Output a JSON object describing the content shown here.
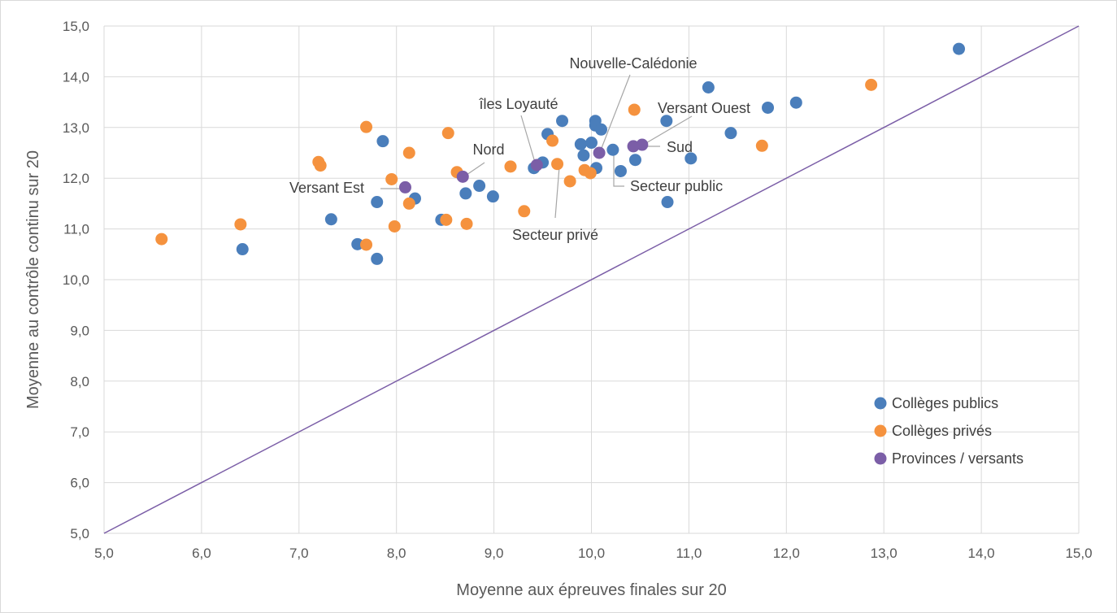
{
  "chart_data": {
    "type": "scatter",
    "xlabel": "Moyenne aux épreuves finales sur 20",
    "ylabel": "Moyenne au contrôle continu sur 20",
    "xlim": [
      5,
      15
    ],
    "ylim": [
      5,
      15
    ],
    "x_ticks": [
      "5,0",
      "6,0",
      "7,0",
      "8,0",
      "9,0",
      "10,0",
      "11,0",
      "12,0",
      "13,0",
      "14,0",
      "15,0"
    ],
    "y_ticks": [
      "5,0",
      "6,0",
      "7,0",
      "8,0",
      "9,0",
      "10,0",
      "11,0",
      "12,0",
      "13,0",
      "14,0",
      "15,0"
    ],
    "grid": true,
    "legend_position": "bottom-right",
    "reference_line": {
      "from": [
        5,
        5
      ],
      "to": [
        15,
        15
      ],
      "color": "#7b5ea7"
    },
    "series": [
      {
        "name": "Collèges publics",
        "color": "#4a7ebb",
        "points": [
          [
            6.42,
            10.6
          ],
          [
            7.33,
            11.19
          ],
          [
            7.6,
            10.7
          ],
          [
            7.8,
            10.41
          ],
          [
            7.8,
            11.53
          ],
          [
            7.86,
            12.73
          ],
          [
            8.19,
            11.6
          ],
          [
            8.46,
            11.18
          ],
          [
            8.71,
            11.7
          ],
          [
            8.85,
            11.85
          ],
          [
            8.99,
            11.64
          ],
          [
            9.41,
            12.2
          ],
          [
            9.5,
            12.31
          ],
          [
            9.55,
            12.87
          ],
          [
            9.7,
            13.13
          ],
          [
            9.89,
            12.67
          ],
          [
            9.92,
            12.45
          ],
          [
            10.0,
            12.7
          ],
          [
            10.04,
            13.13
          ],
          [
            10.04,
            13.04
          ],
          [
            10.05,
            12.2
          ],
          [
            10.1,
            12.96
          ],
          [
            10.22,
            12.56
          ],
          [
            10.3,
            12.14
          ],
          [
            10.45,
            12.36
          ],
          [
            10.77,
            13.13
          ],
          [
            10.78,
            11.53
          ],
          [
            11.02,
            12.39
          ],
          [
            11.2,
            13.79
          ],
          [
            11.43,
            12.89
          ],
          [
            11.81,
            13.39
          ],
          [
            12.1,
            13.49
          ],
          [
            13.77,
            14.55
          ]
        ]
      },
      {
        "name": "Collèges privés",
        "color": "#f5923e",
        "points": [
          [
            5.59,
            10.8
          ],
          [
            6.4,
            11.09
          ],
          [
            7.2,
            12.32
          ],
          [
            7.22,
            12.25
          ],
          [
            7.69,
            13.01
          ],
          [
            7.69,
            10.69
          ],
          [
            7.95,
            11.98
          ],
          [
            7.98,
            11.05
          ],
          [
            8.13,
            11.5
          ],
          [
            8.13,
            12.5
          ],
          [
            8.51,
            11.18
          ],
          [
            8.53,
            12.89
          ],
          [
            8.62,
            12.12
          ],
          [
            8.72,
            11.1
          ],
          [
            9.17,
            12.23
          ],
          [
            9.31,
            11.35
          ],
          [
            9.6,
            12.74
          ],
          [
            9.65,
            12.28
          ],
          [
            9.78,
            11.94
          ],
          [
            9.93,
            12.16
          ],
          [
            9.99,
            12.1
          ],
          [
            10.44,
            13.35
          ],
          [
            11.75,
            12.64
          ],
          [
            12.87,
            13.84
          ]
        ]
      },
      {
        "name": "Provinces / versants",
        "color": "#7b5ea7",
        "points": [
          [
            8.09,
            11.82
          ],
          [
            8.68,
            12.03
          ],
          [
            9.44,
            12.26
          ],
          [
            10.08,
            12.5
          ],
          [
            10.43,
            12.63
          ],
          [
            10.52,
            12.66
          ]
        ]
      }
    ],
    "annotations": [
      {
        "text": "Nouvelle-Calédonie",
        "target": [
          10.08,
          12.5
        ]
      },
      {
        "text": "îles Loyauté",
        "target": [
          9.44,
          12.26
        ]
      },
      {
        "text": "Versant Ouest",
        "target": [
          10.52,
          12.66
        ]
      },
      {
        "text": "Nord",
        "target": [
          8.68,
          12.03
        ]
      },
      {
        "text": "Sud",
        "target": [
          10.52,
          12.66
        ]
      },
      {
        "text": "Versant Est",
        "target": [
          8.09,
          11.82
        ]
      },
      {
        "text": "Secteur public",
        "target": [
          10.22,
          12.56
        ]
      },
      {
        "text": "Secteur privé",
        "target": [
          9.65,
          12.28
        ]
      }
    ]
  }
}
